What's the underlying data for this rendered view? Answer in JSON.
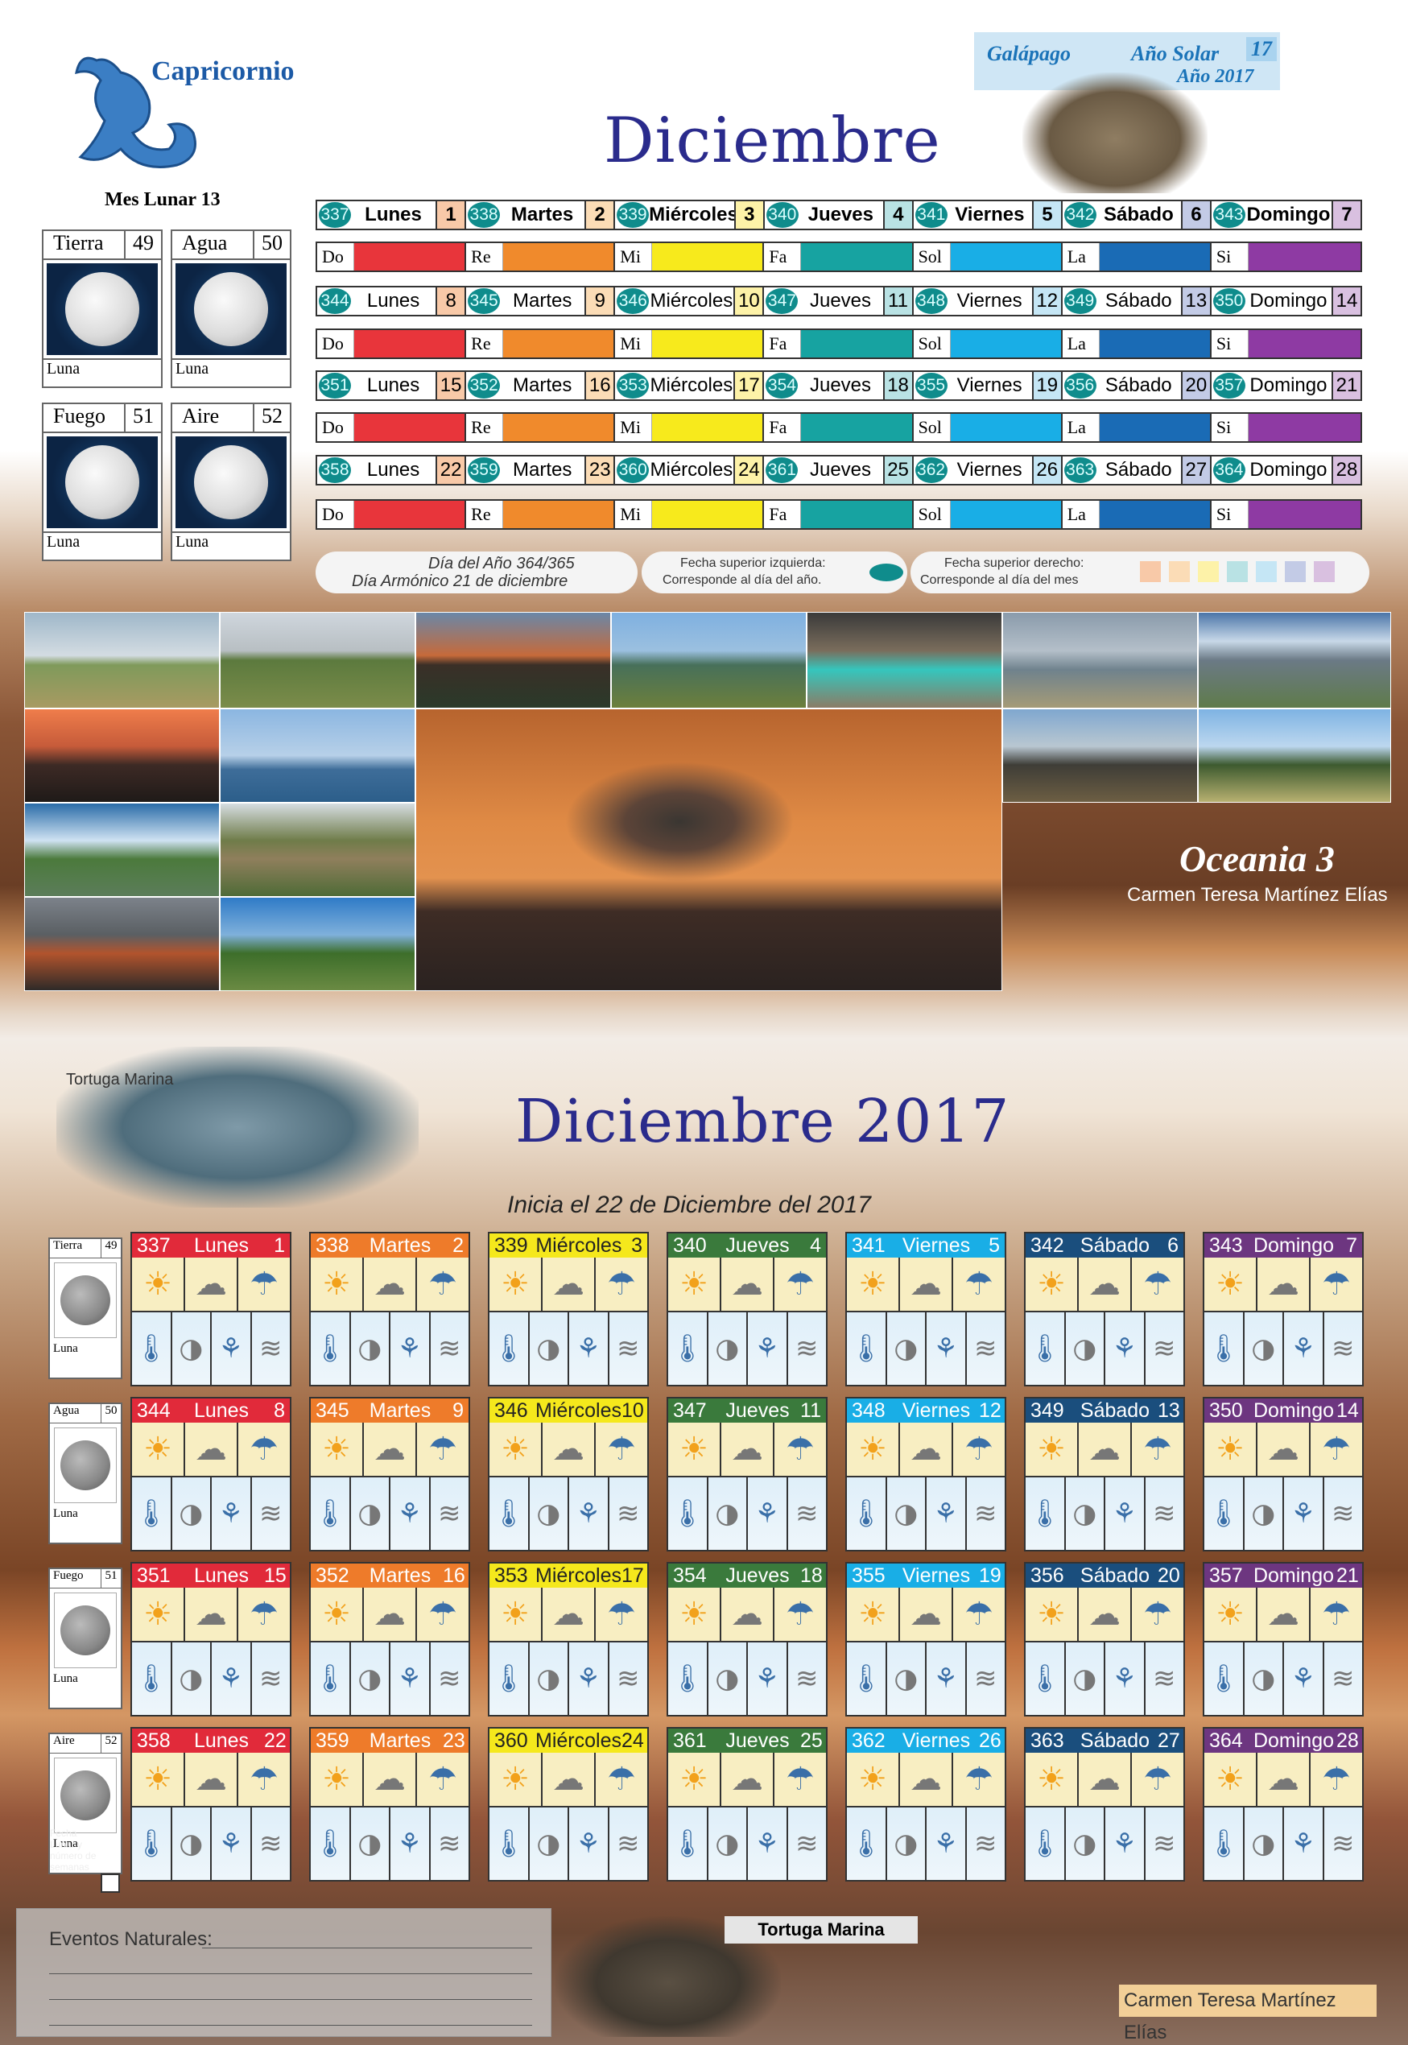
{
  "header": {
    "sign": "Capricornio",
    "lunar_month": "Mes Lunar 13",
    "galapago": "Galápago",
    "solar_year_label": "Año Solar",
    "solar_year": "17",
    "year": "Año 2017",
    "title": "Diciembre"
  },
  "moons": [
    {
      "name": "Tierra",
      "num": "49",
      "label": "Luna"
    },
    {
      "name": "Agua",
      "num": "50",
      "label": "Luna"
    },
    {
      "name": "Fuego",
      "num": "51",
      "label": "Luna"
    },
    {
      "name": "Aire",
      "num": "52",
      "label": "Luna"
    }
  ],
  "notes": [
    "Do",
    "Re",
    "Mi",
    "Fa",
    "Sol",
    "La",
    "Si"
  ],
  "info": {
    "year_day": "Día del Año 364/365",
    "harmonic": "Día Armónico 21 de diciembre",
    "left_note": "Fecha superior izquierda:",
    "left_note2": "Corresponde al día del año.",
    "right_note": "Fecha superior derecho:",
    "right_note2": "Corresponde al día del mes"
  },
  "photo_title": "Oceania 3",
  "author": "Carmen Teresa Martínez Elías",
  "bottom": {
    "turtle_label": "Tortuga Marina",
    "title": "Diciembre 2017",
    "subtitle": "Inicia el 22 de Diciembre del 2017",
    "events_label": "Eventos Naturales:",
    "turtle_label2": "Tortuga Marina",
    "author": "Carmen Teresa Martínez Elías",
    "side_note": "Fecha Lunar y número de semanas"
  },
  "weeks": [
    [
      [
        "337",
        "Lunes",
        "1"
      ],
      [
        "338",
        "Martes",
        "2"
      ],
      [
        "339",
        "Miércoles",
        "3"
      ],
      [
        "340",
        "Jueves",
        "4"
      ],
      [
        "341",
        "Viernes",
        "5"
      ],
      [
        "342",
        "Sábado",
        "6"
      ],
      [
        "343",
        "Domingo",
        "7"
      ]
    ],
    [
      [
        "344",
        "Lunes",
        "8"
      ],
      [
        "345",
        "Martes",
        "9"
      ],
      [
        "346",
        "Miércoles",
        "10"
      ],
      [
        "347",
        "Jueves",
        "11"
      ],
      [
        "348",
        "Viernes",
        "12"
      ],
      [
        "349",
        "Sábado",
        "13"
      ],
      [
        "350",
        "Domingo",
        "14"
      ]
    ],
    [
      [
        "351",
        "Lunes",
        "15"
      ],
      [
        "352",
        "Martes",
        "16"
      ],
      [
        "353",
        "Miércoles",
        "17"
      ],
      [
        "354",
        "Jueves",
        "18"
      ],
      [
        "355",
        "Viernes",
        "19"
      ],
      [
        "356",
        "Sábado",
        "20"
      ],
      [
        "357",
        "Domingo",
        "21"
      ]
    ],
    [
      [
        "358",
        "Lunes",
        "22"
      ],
      [
        "359",
        "Martes",
        "23"
      ],
      [
        "360",
        "Miércoles",
        "24"
      ],
      [
        "361",
        "Jueves",
        "25"
      ],
      [
        "362",
        "Viernes",
        "26"
      ],
      [
        "363",
        "Sábado",
        "27"
      ],
      [
        "364",
        "Domingo",
        "28"
      ]
    ]
  ],
  "colors": {
    "note": [
      "#e8353b",
      "#f08a2c",
      "#f7ea1c",
      "#17a3a1",
      "#19aee6",
      "#1a6bb5",
      "#8e3aa3"
    ],
    "day_header": [
      "#e12a3a",
      "#ee7b2a",
      "#f5e81c",
      "#3a7a3c",
      "#19aee6",
      "#1a4e7d",
      "#6d3680"
    ],
    "md_bg": [
      "#f8c9a8",
      "#fbdcb6",
      "#fdf2a8",
      "#b9e2e4",
      "#c5e6f5",
      "#c3cbe6",
      "#d9c0e0"
    ]
  }
}
